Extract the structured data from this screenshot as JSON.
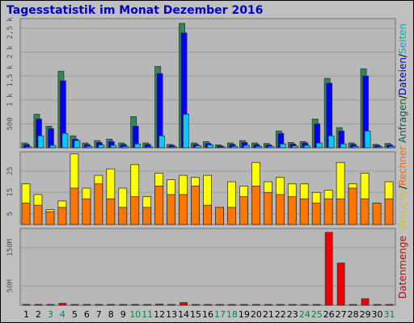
{
  "title": "Tagesstatistik im Monat Dezember 2016",
  "legends": {
    "top": [
      {
        "text": "Anfragen",
        "color": "#006633"
      },
      {
        "text": "/",
        "color": "#000000"
      },
      {
        "text": "Dateien",
        "color": "#0000cc"
      },
      {
        "text": "/",
        "color": "#000000"
      },
      {
        "text": "Seiten",
        "color": "#00aacc"
      }
    ],
    "middle": [
      {
        "text": "Besuche",
        "color": "#cccc00"
      },
      {
        "text": "/",
        "color": "#000000"
      },
      {
        "text": "Rechner",
        "color": "#ff6600"
      }
    ],
    "bottom": [
      {
        "text": "Datenmenge",
        "color": "#cc0000"
      }
    ]
  },
  "colors": {
    "anfragen": "#2e8b57",
    "dateien": "#0000ff",
    "seiten": "#00ccff",
    "besuche": "#ffff00",
    "rechner": "#ff7700",
    "datenmenge": "#ee0000",
    "weekend_label": "#008844"
  },
  "chart_data": [
    {
      "type": "bar",
      "title": "Tagesstatistik im Monat Dezember 2016",
      "categories": [
        "1",
        "2",
        "3",
        "4",
        "5",
        "6",
        "7",
        "8",
        "9",
        "10",
        "11",
        "12",
        "13",
        "14",
        "15",
        "16",
        "17",
        "18",
        "19",
        "20",
        "21",
        "22",
        "23",
        "24",
        "25",
        "26",
        "27",
        "28",
        "29",
        "30",
        "31"
      ],
      "weekend_categories": [
        "3",
        "4",
        "10",
        "11",
        "17",
        "18",
        "24",
        "25",
        "31"
      ],
      "yticks": [
        {
          "value": 500,
          "label": "500"
        },
        {
          "value": 1000,
          "label": "1 k"
        },
        {
          "value": 1500,
          "label": "1,5 k"
        },
        {
          "value": 2000,
          "label": "2 k"
        },
        {
          "value": 2500,
          "label": "2,5 k"
        }
      ],
      "ylim": [
        0,
        2700
      ],
      "series": [
        {
          "name": "Anfragen",
          "values": [
            100,
            700,
            450,
            1600,
            250,
            100,
            150,
            180,
            100,
            650,
            100,
            1700,
            70,
            2600,
            100,
            130,
            60,
            100,
            150,
            100,
            90,
            350,
            110,
            130,
            600,
            1450,
            420,
            100,
            1650,
            70,
            90
          ]
        },
        {
          "name": "Dateien",
          "values": [
            70,
            600,
            400,
            1400,
            180,
            70,
            110,
            130,
            70,
            450,
            70,
            1550,
            50,
            2400,
            70,
            90,
            40,
            70,
            110,
            70,
            60,
            300,
            80,
            100,
            500,
            1350,
            350,
            70,
            1500,
            50,
            60
          ]
        },
        {
          "name": "Seiten",
          "values": [
            20,
            250,
            50,
            300,
            150,
            30,
            60,
            50,
            30,
            80,
            20,
            250,
            20,
            700,
            40,
            60,
            10,
            30,
            50,
            30,
            30,
            80,
            40,
            50,
            100,
            250,
            80,
            30,
            350,
            20,
            30
          ]
        }
      ]
    },
    {
      "type": "bar",
      "categories": [
        "1",
        "2",
        "3",
        "4",
        "5",
        "6",
        "7",
        "8",
        "9",
        "10",
        "11",
        "12",
        "13",
        "14",
        "15",
        "16",
        "17",
        "18",
        "19",
        "20",
        "21",
        "22",
        "23",
        "24",
        "25",
        "26",
        "27",
        "28",
        "29",
        "30",
        "31"
      ],
      "yticks": [
        {
          "value": 5,
          "label": "5"
        },
        {
          "value": 15,
          "label": "15"
        },
        {
          "value": 25,
          "label": "25"
        }
      ],
      "ylim": [
        0,
        34
      ],
      "series": [
        {
          "name": "Besuche",
          "values": [
            19,
            14,
            7,
            11,
            33,
            17,
            23,
            26,
            17,
            28,
            13,
            24,
            21,
            23,
            22,
            23,
            8,
            20,
            18,
            29,
            20,
            22,
            19,
            19,
            15,
            16,
            29,
            19,
            24,
            10,
            20
          ]
        },
        {
          "name": "Rechner",
          "values": [
            10,
            9,
            6,
            8,
            17,
            12,
            19,
            12,
            8,
            13,
            8,
            18,
            14,
            14,
            18,
            9,
            8,
            8,
            13,
            18,
            15,
            14,
            13,
            12,
            10,
            12,
            12,
            17,
            12,
            10,
            12
          ]
        }
      ]
    },
    {
      "type": "bar",
      "categories": [
        "1",
        "2",
        "3",
        "4",
        "5",
        "6",
        "7",
        "8",
        "9",
        "10",
        "11",
        "12",
        "13",
        "14",
        "15",
        "16",
        "17",
        "18",
        "19",
        "20",
        "21",
        "22",
        "23",
        "24",
        "25",
        "26",
        "27",
        "28",
        "29",
        "30",
        "31"
      ],
      "yticks": [
        {
          "value": 50,
          "label": "50M"
        },
        {
          "value": 150,
          "label": "150M"
        }
      ],
      "ylim": [
        0,
        200
      ],
      "series": [
        {
          "name": "Datenmenge",
          "values": [
            1,
            2,
            1,
            5,
            2,
            1,
            1,
            1,
            1,
            1,
            1,
            3,
            2,
            7,
            1,
            1,
            1,
            1,
            1,
            1,
            1,
            1,
            1,
            1,
            1,
            190,
            110,
            1,
            17,
            1,
            1
          ]
        }
      ]
    }
  ]
}
